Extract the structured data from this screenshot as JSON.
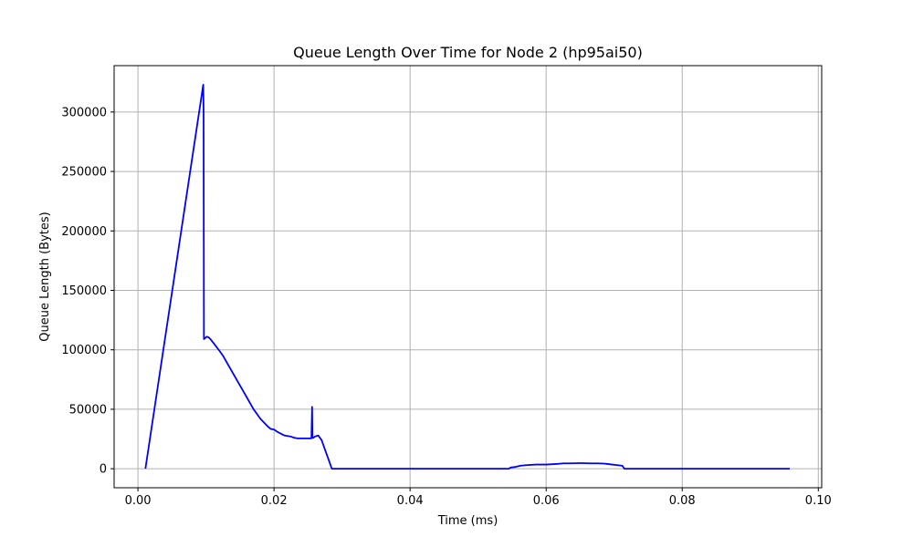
{
  "chart_data": {
    "type": "line",
    "title": "Queue Length Over Time for Node 2 (hp95ai50)",
    "xlabel": "Time (ms)",
    "ylabel": "Queue Length (Bytes)",
    "xlim": [
      -0.0035,
      0.1005
    ],
    "ylim": [
      -16000,
      339000
    ],
    "xticks": [
      0.0,
      0.02,
      0.04,
      0.06,
      0.08,
      0.1
    ],
    "xtick_labels": [
      "0.00",
      "0.02",
      "0.04",
      "0.06",
      "0.08",
      "0.10"
    ],
    "yticks": [
      0,
      50000,
      100000,
      150000,
      200000,
      250000,
      300000
    ],
    "ytick_labels": [
      "0",
      "50000",
      "100000",
      "150000",
      "200000",
      "250000",
      "300000"
    ],
    "grid": true,
    "series": [
      {
        "color": "#0000ff",
        "x": [
          0.0011,
          0.0096,
          0.00965,
          0.0097,
          0.0099,
          0.0101,
          0.0104,
          0.0108,
          0.0112,
          0.0116,
          0.012,
          0.0125,
          0.013,
          0.0135,
          0.014,
          0.0145,
          0.015,
          0.0155,
          0.016,
          0.0165,
          0.017,
          0.0175,
          0.018,
          0.0185,
          0.019,
          0.0195,
          0.02,
          0.0205,
          0.021,
          0.0215,
          0.022,
          0.0225,
          0.023,
          0.0235,
          0.024,
          0.0245,
          0.025,
          0.0255,
          0.0256,
          0.02565,
          0.0257,
          0.0258,
          0.026,
          0.0265,
          0.027,
          0.0275,
          0.028,
          0.0285,
          0.0289,
          0.03,
          0.04,
          0.05,
          0.0545,
          0.0548,
          0.0555,
          0.0562,
          0.057,
          0.0585,
          0.06,
          0.0615,
          0.062,
          0.0625,
          0.0635,
          0.065,
          0.0665,
          0.0675,
          0.0685,
          0.069,
          0.0697,
          0.0705,
          0.0712,
          0.0715,
          0.08,
          0.0958
        ],
        "y": [
          0,
          323000,
          300000,
          109000,
          110000,
          111000,
          110500,
          108000,
          105000,
          102000,
          99000,
          95000,
          90000,
          85000,
          80000,
          75000,
          70000,
          65000,
          60000,
          55000,
          50000,
          46000,
          42000,
          39000,
          36000,
          33500,
          33000,
          31000,
          29500,
          28000,
          27500,
          27000,
          26000,
          25500,
          25500,
          25500,
          25500,
          25500,
          52000,
          26000,
          26000,
          26000,
          27000,
          28000,
          24000,
          16000,
          8000,
          0,
          0,
          0,
          0,
          0,
          0,
          1000,
          1500,
          2500,
          3000,
          3500,
          3500,
          4000,
          4200,
          4500,
          4500,
          4700,
          4500,
          4500,
          4300,
          4000,
          3500,
          3000,
          2500,
          0,
          0,
          0
        ]
      }
    ]
  }
}
